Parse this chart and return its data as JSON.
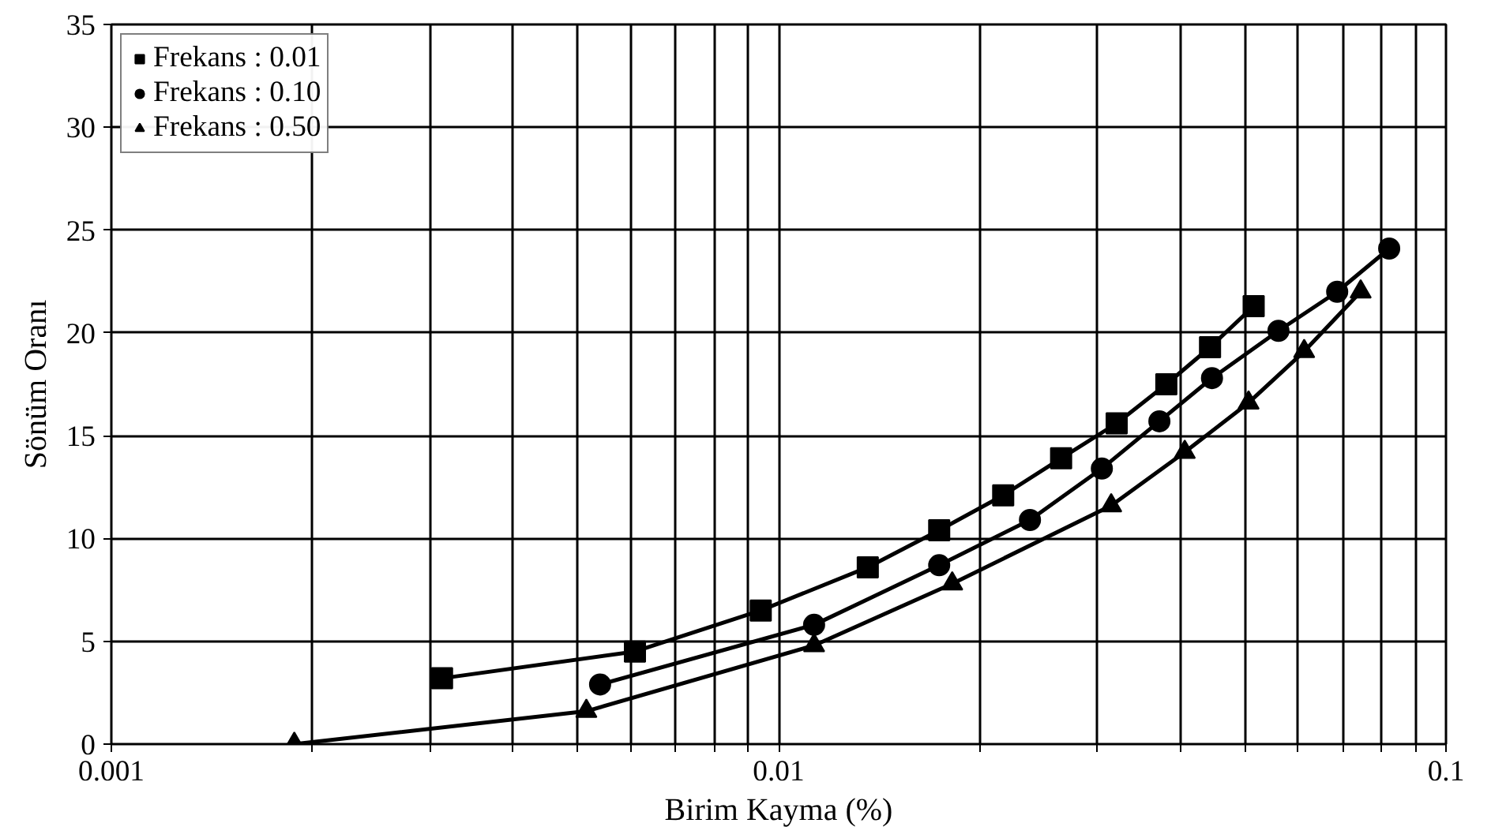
{
  "chart_data": {
    "type": "line",
    "xlabel": "Birim Kayma (%)",
    "ylabel": "Sönüm Oranı",
    "log": "x",
    "xlim": [
      0.001,
      0.1
    ],
    "ylim": [
      0,
      35
    ],
    "xticks": [
      0.001,
      {
        "value": 0.002,
        "label": null
      },
      {
        "value": 0.003,
        "label": null
      },
      {
        "value": 0.004,
        "label": null
      },
      {
        "value": 0.005,
        "label": null
      },
      {
        "value": 0.006,
        "label": null
      },
      {
        "value": 0.007,
        "label": null
      },
      {
        "value": 0.008,
        "label": null
      },
      {
        "value": 0.009,
        "label": null
      },
      0.01,
      {
        "value": 0.02,
        "label": null
      },
      {
        "value": 0.03,
        "label": null
      },
      {
        "value": 0.04,
        "label": null
      },
      {
        "value": 0.05,
        "label": null
      },
      {
        "value": 0.06,
        "label": null
      },
      {
        "value": 0.07,
        "label": null
      },
      {
        "value": 0.08,
        "label": null
      },
      {
        "value": 0.09,
        "label": null
      },
      0.1
    ],
    "yticks": [
      0,
      5,
      10,
      15,
      20,
      25,
      30,
      35
    ],
    "grid": true,
    "legend": "top left",
    "line_style": "solid",
    "series": [
      {
        "name": "Frekans : 0.01",
        "color": "#000000",
        "marker": "square",
        "x": [
          0.00313,
          0.00609,
          0.0094,
          0.0136,
          0.0174,
          0.0217,
          0.0265,
          0.0321,
          0.0381,
          0.0443,
          0.0515
        ],
        "values": [
          3.2,
          4.5,
          6.5,
          8.6,
          10.4,
          12.1,
          13.9,
          15.6,
          17.5,
          19.3,
          21.3
        ]
      },
      {
        "name": "Frekans : 0.10",
        "color": "#000000",
        "marker": "circle",
        "x": [
          0.0054,
          0.0113,
          0.0174,
          0.0238,
          0.0305,
          0.0372,
          0.0446,
          0.0561,
          0.0687,
          0.0822
        ],
        "values": [
          2.9,
          5.8,
          8.7,
          10.9,
          13.4,
          15.7,
          17.8,
          20.1,
          22.0,
          24.1
        ]
      },
      {
        "name": "Frekans : 0.50",
        "color": "#000000",
        "marker": "triangle",
        "x": [
          0.00188,
          0.00515,
          0.0113,
          0.0182,
          0.0315,
          0.0406,
          0.0506,
          0.0613,
          0.0745
        ],
        "values": [
          0,
          1.6,
          4.8,
          7.8,
          11.6,
          14.2,
          16.6,
          19.1,
          22.0
        ]
      }
    ]
  }
}
